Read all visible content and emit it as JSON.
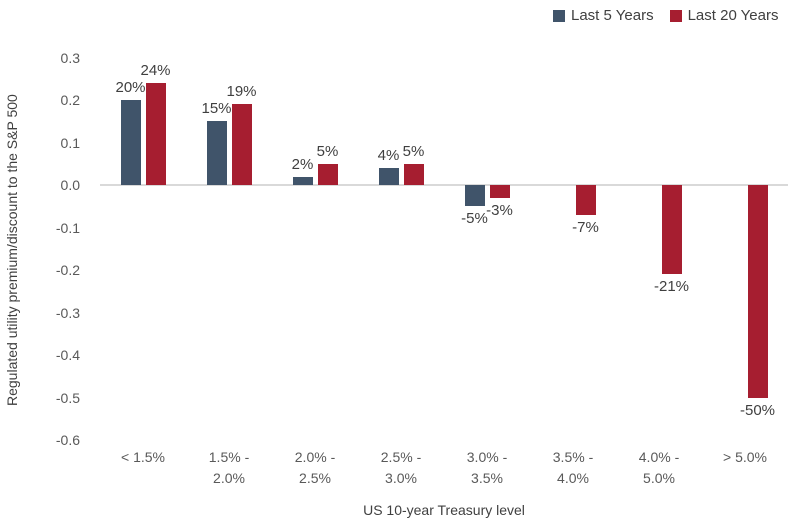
{
  "legend": [
    {
      "label": "Last 5 Years",
      "color": "#40546A"
    },
    {
      "label": "Last 20 Years",
      "color": "#A61E30"
    }
  ],
  "chart_data": {
    "type": "bar",
    "title": "",
    "xlabel": "US 10-year Treasury level",
    "ylabel": "Regulated utility premium/discount to the S&P 500",
    "categories": [
      "< 1.5%",
      "1.5% - 2.0%",
      "2.0% - 2.5%",
      "2.5% - 3.0%",
      "3.0% - 3.5%",
      "3.5% - 4.0%",
      "4.0% - 5.0%",
      "> 5.0%"
    ],
    "category_label_lines": [
      [
        "< 1.5%"
      ],
      [
        "1.5% -",
        "2.0%"
      ],
      [
        "2.0% -",
        "2.5%"
      ],
      [
        "2.5% -",
        "3.0%"
      ],
      [
        "3.0% -",
        "3.5%"
      ],
      [
        "3.5% -",
        "4.0%"
      ],
      [
        "4.0% -",
        "5.0%"
      ],
      [
        "> 5.0%"
      ]
    ],
    "series": [
      {
        "name": "Last 5 Years",
        "color": "#40546A",
        "values": [
          0.2,
          0.15,
          0.02,
          0.04,
          -0.05,
          null,
          null,
          null
        ],
        "labels": [
          "20%",
          "15%",
          "2%",
          "4%",
          "-5%",
          "",
          "",
          ""
        ]
      },
      {
        "name": "Last 20 Years",
        "color": "#A61E30",
        "values": [
          0.24,
          0.19,
          0.05,
          0.05,
          -0.03,
          -0.07,
          -0.21,
          -0.5
        ],
        "labels": [
          "24%",
          "19%",
          "5%",
          "5%",
          "-3%",
          "-7%",
          "-21%",
          "-50%"
        ]
      }
    ],
    "y_axis": {
      "min": -0.6,
      "max": 0.3,
      "tick_step": 0.1,
      "ticks": [
        "0.3",
        "0.2",
        "0.1",
        "0.0",
        "-0.1",
        "-0.2",
        "-0.3",
        "-0.4",
        "-0.5",
        "-0.6"
      ]
    },
    "grid": false,
    "legend_position": "top-right"
  }
}
